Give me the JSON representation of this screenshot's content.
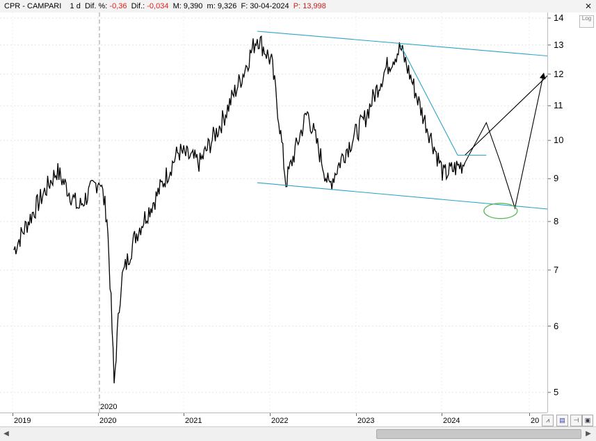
{
  "header": {
    "symbol": "CPR - CAMPARI",
    "period": "1 d",
    "dif_pct_label": "Dif. %:",
    "dif_pct_value": "-0,36",
    "dif_label": "Dif.:",
    "dif_value": "-0,034",
    "m_label": "M:",
    "m_value": "9,390",
    "m2_label": "m:",
    "m2_value": "9,326",
    "f_label": "F:",
    "f_value": "30-04-2024",
    "p_label": "P:",
    "p_value": "13,998",
    "close_icon": "close-icon"
  },
  "colors": {
    "price": "#000000",
    "channel": "#2aa4c7",
    "ellipse": "#5cb85c",
    "negative": "#e0201c"
  },
  "chart_data": {
    "type": "line",
    "title": "",
    "scale": "log",
    "ylim": [
      5,
      14.2
    ],
    "y_ticks": [
      "14",
      "13",
      "12",
      "11",
      "10",
      "9",
      "8",
      "7",
      "6",
      "5"
    ],
    "x_ticks": [
      "2019",
      "2020",
      "2021",
      "2022",
      "2023",
      "2024",
      "20"
    ],
    "cursor_date": "2020",
    "series": [
      {
        "x": [
          "2019-01",
          "2019-04",
          "2019-07",
          "2019-10",
          "2020-01",
          "2020-02",
          "2020-03",
          "2020-04",
          "2020-06",
          "2020-09",
          "2020-12",
          "2021-03",
          "2021-06",
          "2021-09",
          "2021-11",
          "2022-01",
          "2022-03",
          "2022-06",
          "2022-09",
          "2022-11",
          "2023-02",
          "2023-05",
          "2023-07",
          "2023-10",
          "2024-01",
          "2024-04"
        ],
        "y": [
          7.4,
          8.3,
          9.2,
          8.3,
          9.0,
          8.1,
          5.1,
          6.8,
          7.7,
          8.6,
          9.7,
          9.4,
          10.5,
          12.0,
          13.3,
          12.4,
          8.9,
          10.8,
          8.8,
          9.6,
          10.6,
          12.2,
          12.9,
          10.8,
          9.1,
          9.4
        ]
      }
    ],
    "drawings": {
      "channel_upper": {
        "x": [
          "2021-11",
          "2025-09"
        ],
        "y": [
          13.5,
          12.5
        ]
      },
      "channel_lower": {
        "x": [
          "2021-11",
          "2025-09"
        ],
        "y": [
          8.9,
          8.2
        ]
      },
      "trend_line": {
        "x": [
          "2023-07",
          "2024-03"
        ],
        "y": [
          13.0,
          9.6
        ]
      },
      "projection_path": {
        "x": [
          "2024-04",
          "2024-07",
          "2024-09",
          "2024-11",
          "2025-03"
        ],
        "y": [
          9.4,
          10.5,
          9.4,
          8.3,
          12.0
        ]
      },
      "projection_up": {
        "x": [
          "2024-04",
          "2025-10"
        ],
        "y": [
          9.6,
          13.5
        ]
      },
      "target_ellipse": {
        "x": "2024-09",
        "y": 8.3
      }
    }
  },
  "toolbar": {
    "log_label": "Log",
    "tools": [
      "chart-style-icon",
      "save-icon",
      "pin-icon"
    ]
  }
}
